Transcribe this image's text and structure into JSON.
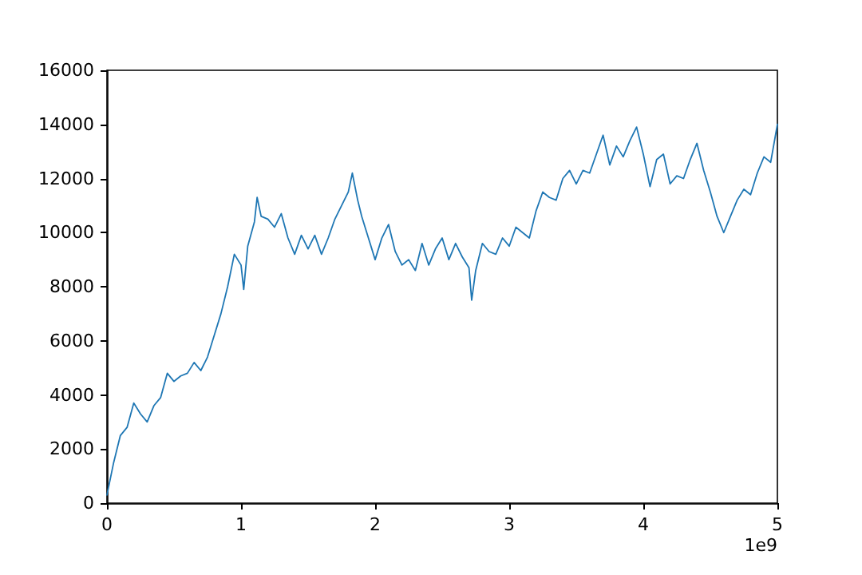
{
  "chart_data": {
    "type": "line",
    "annotations": [
      "1e9"
    ],
    "x": [
      0,
      0.05,
      0.1,
      0.15,
      0.2,
      0.25,
      0.3,
      0.35,
      0.4,
      0.45,
      0.5,
      0.55,
      0.6,
      0.65,
      0.7,
      0.75,
      0.8,
      0.85,
      0.9,
      0.95,
      1.0,
      1.02,
      1.05,
      1.1,
      1.12,
      1.15,
      1.2,
      1.25,
      1.3,
      1.35,
      1.4,
      1.45,
      1.5,
      1.55,
      1.6,
      1.65,
      1.7,
      1.75,
      1.8,
      1.83,
      1.87,
      1.9,
      1.95,
      2.0,
      2.05,
      2.1,
      2.15,
      2.2,
      2.25,
      2.3,
      2.35,
      2.4,
      2.45,
      2.5,
      2.55,
      2.6,
      2.65,
      2.7,
      2.72,
      2.75,
      2.8,
      2.85,
      2.9,
      2.95,
      3.0,
      3.05,
      3.1,
      3.15,
      3.2,
      3.25,
      3.3,
      3.35,
      3.4,
      3.45,
      3.5,
      3.55,
      3.6,
      3.65,
      3.7,
      3.75,
      3.8,
      3.85,
      3.9,
      3.95,
      4.0,
      4.05,
      4.1,
      4.15,
      4.2,
      4.25,
      4.3,
      4.35,
      4.4,
      4.45,
      4.5,
      4.55,
      4.6,
      4.65,
      4.7,
      4.75,
      4.8,
      4.85,
      4.9,
      4.95,
      5.0
    ],
    "series": [
      {
        "color": "#1f77b4",
        "values": [
          300,
          1500,
          2500,
          2800,
          3700,
          3300,
          3000,
          3600,
          3900,
          4800,
          4500,
          4700,
          4800,
          5200,
          4900,
          5400,
          6200,
          7000,
          8000,
          9200,
          8800,
          7900,
          9500,
          10400,
          11300,
          10600,
          10500,
          10200,
          10700,
          9800,
          9200,
          9900,
          9400,
          9900,
          9200,
          9800,
          10500,
          11000,
          11500,
          12200,
          11200,
          10600,
          9800,
          9000,
          9800,
          10300,
          9300,
          8800,
          9000,
          8600,
          9600,
          8800,
          9400,
          9800,
          9000,
          9600,
          9100,
          8700,
          7500,
          8600,
          9600,
          9300,
          9200,
          9800,
          9500,
          10200,
          10000,
          9800,
          10800,
          11500,
          11300,
          11200,
          12000,
          12300,
          11800,
          12300,
          12200,
          12900,
          13600,
          12500,
          13200,
          12800,
          13400,
          13900,
          12900,
          11700,
          12700,
          12900,
          11800,
          12100,
          12000,
          12700,
          13300,
          12300,
          11500,
          10600,
          10000,
          10600,
          11200,
          11600,
          11400,
          12200,
          12800,
          12600,
          14000
        ]
      }
    ],
    "xlim": [
      0,
      5
    ],
    "xticks": [
      0,
      1,
      2,
      3,
      4,
      5
    ],
    "ylim": [
      0,
      16000
    ],
    "yticks": [
      0,
      2000,
      4000,
      6000,
      8000,
      10000,
      12000,
      14000,
      16000
    ],
    "grid": false,
    "marker": "none",
    "line_style": "solid"
  }
}
